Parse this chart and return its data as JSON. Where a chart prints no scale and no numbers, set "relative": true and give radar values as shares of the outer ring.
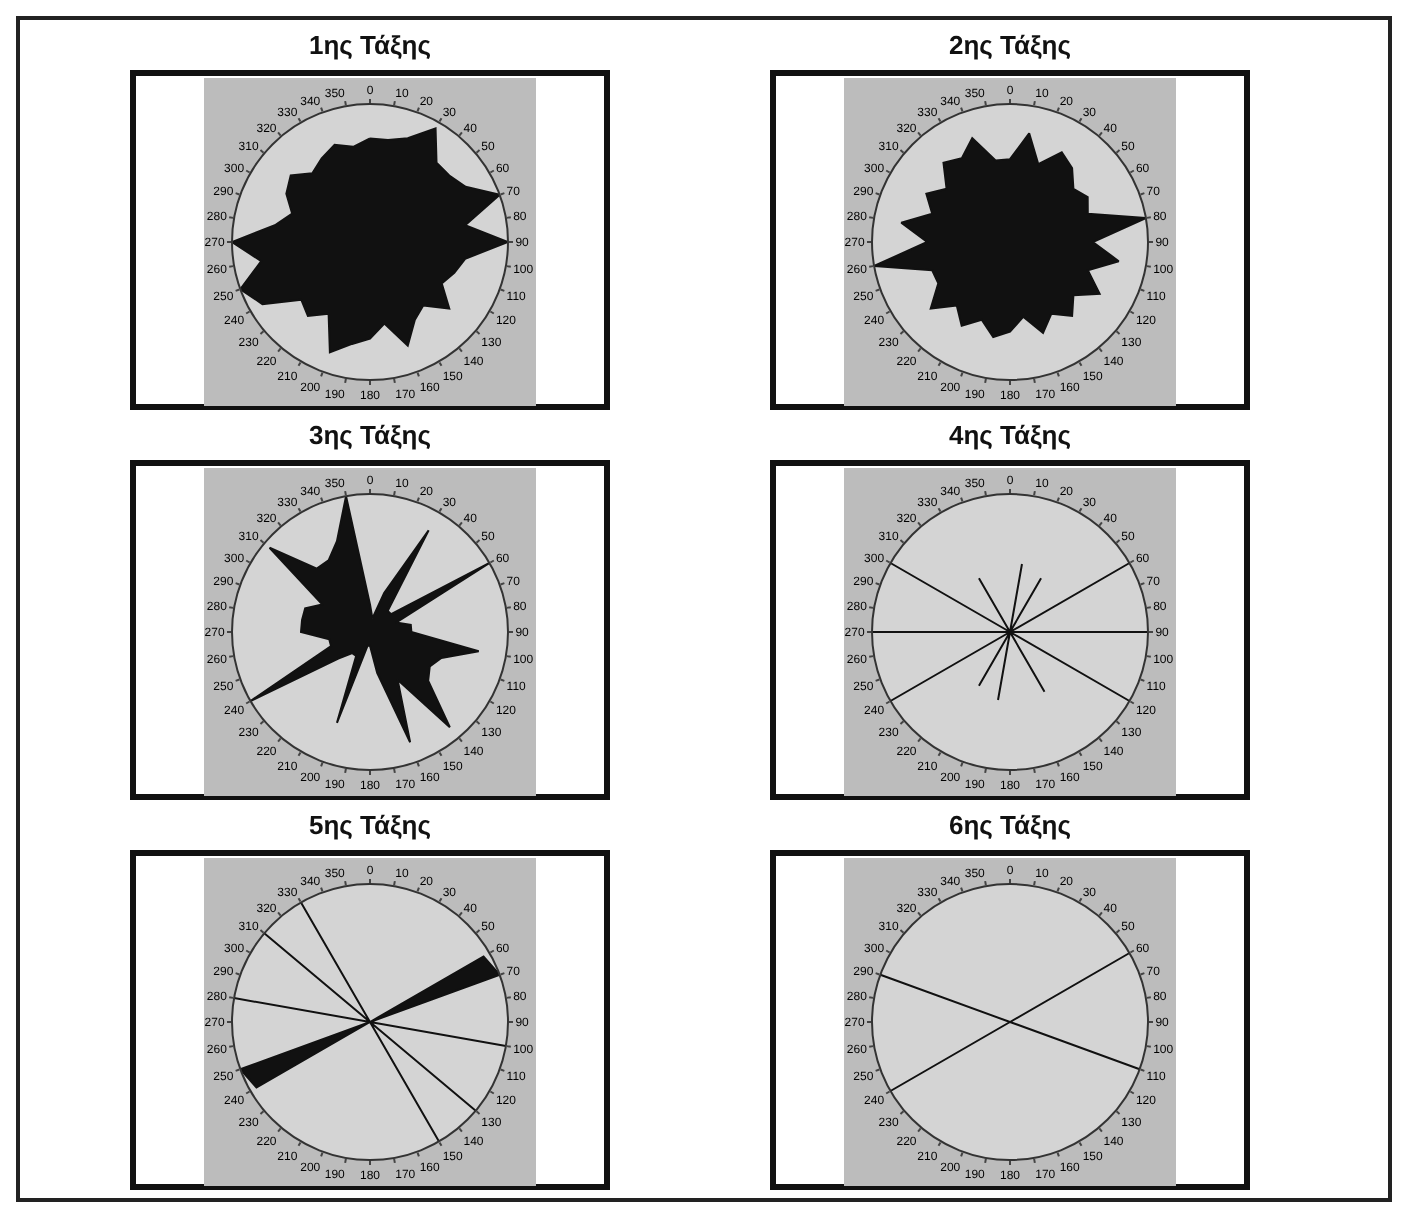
{
  "chart_data": [
    {
      "type": "radar",
      "title": "1ης Τάξης",
      "relative": true,
      "categories": [
        "0",
        "10",
        "20",
        "30",
        "40",
        "50",
        "60",
        "70",
        "80",
        "90",
        "100",
        "110",
        "120",
        "130",
        "140",
        "150",
        "160",
        "170",
        "180",
        "190",
        "200",
        "210",
        "220",
        "230",
        "240",
        "250",
        "260",
        "270",
        "280",
        "290",
        "300",
        "310",
        "320",
        "330",
        "340",
        "350"
      ],
      "series": [
        {
          "color": "#111111",
          "values": [
            0.75,
            0.75,
            0.8,
            0.95,
            0.75,
            0.75,
            0.8,
            1,
            0.7,
            1,
            0.7,
            0.65,
            0.6,
            0.75,
            0.6,
            0.65,
            0.8,
            0.6,
            0.7,
            0.75,
            0.85,
            0.6,
            0.7,
            0.65,
            0.9,
            1,
            0.8,
            1,
            0.7,
            0.6,
            0.7,
            0.75,
            0.65,
            0.7,
            0.75,
            0.7
          ]
        }
      ]
    },
    {
      "type": "radar",
      "title": "2ης Τάξης",
      "relative": true,
      "categories": [
        "0",
        "10",
        "20",
        "30",
        "40",
        "50",
        "60",
        "70",
        "80",
        "90",
        "100",
        "110",
        "120",
        "130",
        "140",
        "150",
        "160",
        "170",
        "180",
        "190",
        "200",
        "210",
        "220",
        "230",
        "240",
        "250",
        "260",
        "270",
        "280",
        "290",
        "300",
        "310",
        "320",
        "330",
        "340",
        "350"
      ],
      "series": [
        {
          "color": "#111111",
          "values": [
            0.6,
            0.8,
            0.6,
            0.75,
            0.7,
            0.6,
            0.65,
            0.6,
            1,
            0.6,
            0.8,
            0.6,
            0.75,
            0.6,
            0.7,
            0.6,
            0.7,
            0.55,
            0.65,
            0.7,
            0.6,
            0.7,
            0.6,
            0.75,
            0.6,
            0.6,
            1,
            0.6,
            0.8,
            0.6,
            0.7,
            0.6,
            0.75,
            0.7,
            0.8,
            0.6
          ]
        }
      ]
    },
    {
      "type": "radar",
      "title": "3ης Τάξης",
      "relative": true,
      "categories": [
        "0",
        "10",
        "20",
        "30",
        "40",
        "50",
        "60",
        "70",
        "80",
        "90",
        "100",
        "110",
        "120",
        "130",
        "140",
        "150",
        "160",
        "170",
        "180",
        "190",
        "200",
        "210",
        "220",
        "230",
        "240",
        "250",
        "260",
        "270",
        "280",
        "290",
        "300",
        "310",
        "320",
        "330",
        "340",
        "350"
      ],
      "series": [
        {
          "color": "#111111",
          "values": [
            0.2,
            0.1,
            0.3,
            0.85,
            0.2,
            0.2,
            1,
            0.2,
            0.3,
            0.3,
            0.8,
            0.55,
            0.5,
            0.55,
            0.9,
            0.4,
            0.85,
            0.3,
            0.1,
            0.1,
            0.7,
            0.2,
            0.2,
            0.3,
            1,
            0.3,
            0.3,
            0.5,
            0.5,
            0.5,
            0.4,
            0.95,
            0.6,
            0.6,
            0.7,
            1
          ]
        }
      ]
    },
    {
      "type": "radar",
      "title": "4ης Τάξης",
      "relative": true,
      "categories": [
        "0",
        "10",
        "20",
        "30",
        "40",
        "50",
        "60",
        "70",
        "80",
        "90",
        "100",
        "110",
        "120",
        "130",
        "140",
        "150",
        "160",
        "170",
        "180",
        "190",
        "200",
        "210",
        "220",
        "230",
        "240",
        "250",
        "260",
        "270",
        "280",
        "290",
        "300",
        "310",
        "320",
        "330",
        "340",
        "350"
      ],
      "series": [
        {
          "color": "#111111",
          "values": [
            0,
            0.5,
            0,
            0.45,
            0,
            0,
            1,
            0,
            0,
            1,
            0,
            0,
            1,
            0,
            0,
            0.5,
            0,
            0,
            0,
            0.5,
            0,
            0.45,
            0,
            0,
            1,
            0,
            0,
            1,
            0,
            0,
            1,
            0,
            0,
            0.45,
            0,
            0
          ]
        }
      ]
    },
    {
      "type": "radar",
      "title": "5ης Τάξης",
      "relative": true,
      "categories": [
        "0",
        "10",
        "20",
        "30",
        "40",
        "50",
        "60",
        "70",
        "80",
        "90",
        "100",
        "110",
        "120",
        "130",
        "140",
        "150",
        "160",
        "170",
        "180",
        "190",
        "200",
        "210",
        "220",
        "230",
        "240",
        "250",
        "260",
        "270",
        "280",
        "290",
        "300",
        "310",
        "320",
        "330",
        "340",
        "350"
      ],
      "series": [
        {
          "color": "#111111",
          "values": [
            0,
            0,
            0,
            0,
            0,
            0,
            0.95,
            1,
            0,
            0,
            1,
            0,
            0,
            1,
            0,
            1,
            0,
            0,
            0,
            0,
            0,
            0,
            0,
            0,
            0.95,
            1,
            0,
            0,
            1,
            0,
            0,
            1,
            0,
            1,
            0,
            0
          ]
        }
      ]
    },
    {
      "type": "radar",
      "title": "6ης Τάξης",
      "relative": true,
      "categories": [
        "0",
        "10",
        "20",
        "30",
        "40",
        "50",
        "60",
        "70",
        "80",
        "90",
        "100",
        "110",
        "120",
        "130",
        "140",
        "150",
        "160",
        "170",
        "180",
        "190",
        "200",
        "210",
        "220",
        "230",
        "240",
        "250",
        "260",
        "270",
        "280",
        "290",
        "300",
        "310",
        "320",
        "330",
        "340",
        "350"
      ],
      "series": [
        {
          "color": "#111111",
          "values": [
            0,
            0,
            0,
            0,
            0,
            0,
            1,
            0,
            0,
            0,
            0,
            1,
            0,
            0,
            0,
            0,
            0,
            0,
            0,
            0,
            0,
            0,
            0,
            0,
            1,
            0,
            0,
            0,
            0,
            1,
            0,
            0,
            0,
            0,
            0,
            0
          ]
        }
      ]
    }
  ]
}
